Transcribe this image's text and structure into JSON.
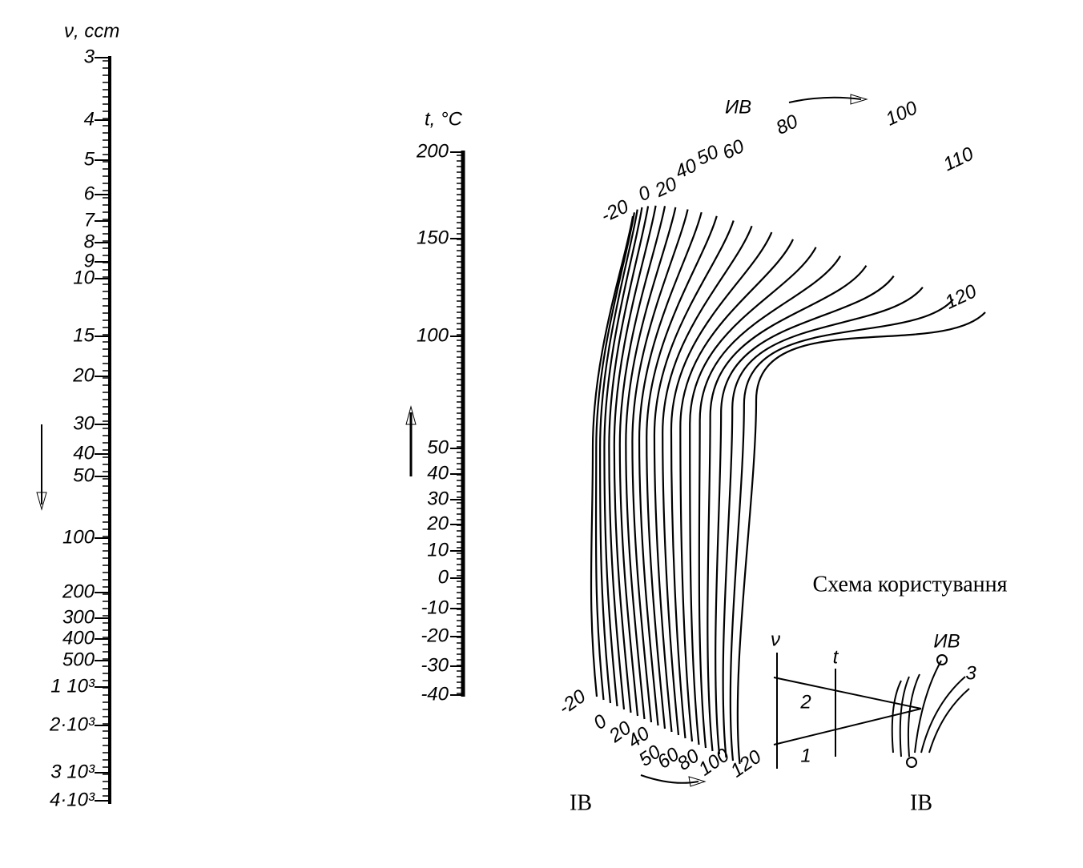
{
  "nu_scale": {
    "title": "ν, ccm",
    "labels": [
      "3",
      "4",
      "5",
      "6",
      "7",
      "8",
      "9",
      "10",
      "15",
      "20",
      "30",
      "40",
      "50",
      "100",
      "200",
      "300",
      "400",
      "500",
      "1 10³",
      "2·10³",
      "3 10³",
      "4·10³"
    ]
  },
  "t_scale": {
    "title": "t, °C",
    "labels": [
      "200",
      "150",
      "100",
      "50",
      "40",
      "30",
      "20",
      "10",
      "0",
      "-10",
      "-20",
      "-30",
      "-40"
    ]
  },
  "curves": {
    "top_title": "ИВ",
    "top_labels": [
      "-20",
      "0",
      "20",
      "40",
      "50",
      "60",
      "80",
      "100",
      "110",
      "120"
    ],
    "bottom_labels": [
      "-20",
      "0",
      "20",
      "40",
      "50",
      "60",
      "80",
      "100",
      "120"
    ],
    "footer": "IB"
  },
  "scheme": {
    "title": "Схема користування",
    "axis_labels": [
      "ν",
      "t",
      "ИВ"
    ],
    "step_labels": [
      "1",
      "2",
      "3"
    ],
    "footer": "IB"
  }
}
